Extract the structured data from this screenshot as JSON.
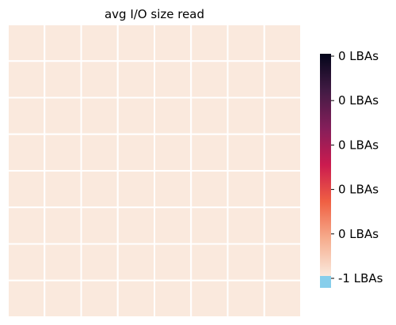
{
  "chart_data": {
    "type": "heatmap",
    "title": "avg I/O size read",
    "rows": 8,
    "cols": 8,
    "values": [
      [
        0,
        0,
        0,
        0,
        0,
        0,
        0,
        0
      ],
      [
        0,
        0,
        0,
        0,
        0,
        0,
        0,
        0
      ],
      [
        0,
        0,
        0,
        0,
        0,
        0,
        0,
        0
      ],
      [
        0,
        0,
        0,
        0,
        0,
        0,
        0,
        0
      ],
      [
        0,
        0,
        0,
        0,
        0,
        0,
        0,
        0
      ],
      [
        0,
        0,
        0,
        0,
        0,
        0,
        0,
        0
      ],
      [
        0,
        0,
        0,
        0,
        0,
        0,
        0,
        0
      ],
      [
        0,
        0,
        0,
        0,
        0,
        0,
        0,
        0
      ]
    ],
    "cell_color": "#fae9dd",
    "grid_line_color": "#ffffff",
    "xlabel": "",
    "ylabel": "",
    "colorbar": {
      "colormap": "rocket",
      "colors": [
        "#fae9dd",
        "#f6ad8e",
        "#f06043",
        "#cb1b4f",
        "#841e5a",
        "#421b44",
        "#03051a"
      ],
      "under_color": "#87ceeb",
      "tick_labels": [
        "-1 LBAs",
        "0 LBAs",
        "0 LBAs",
        "0 LBAs",
        "0 LBAs",
        "0 LBAs"
      ]
    }
  }
}
